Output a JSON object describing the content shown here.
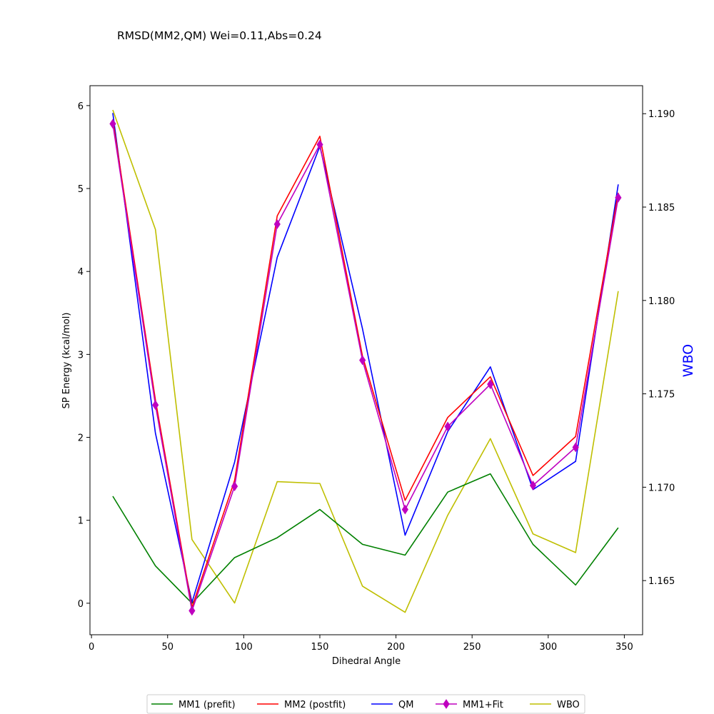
{
  "chart_data": {
    "type": "line",
    "title": "RMSD(MM2,QM) Wei=0.11,Abs=0.24",
    "xlabel": "Dihedral Angle",
    "ylabel": "SP Energy (kcal/mol)",
    "y2label": "WBO",
    "y2label_color": "#0000ff",
    "xlim": [
      -1,
      362
    ],
    "ylim": [
      -0.38,
      6.24
    ],
    "y2lim": [
      1.1621,
      1.1915
    ],
    "xticks": [
      0,
      50,
      100,
      150,
      200,
      250,
      300,
      350
    ],
    "yticks": [
      0,
      1,
      2,
      3,
      4,
      5,
      6
    ],
    "y2ticks": [
      1.165,
      1.17,
      1.175,
      1.18,
      1.185,
      1.19
    ],
    "y2tick_labels": [
      "1.165",
      "1.170",
      "1.175",
      "1.180",
      "1.185",
      "1.190"
    ],
    "x": [
      14,
      42,
      66,
      94,
      122,
      150,
      178,
      206,
      234,
      262,
      290,
      318,
      346
    ],
    "series": [
      {
        "name": "MM1 (prefit)",
        "color": "#008000",
        "axis": "left",
        "marker": "none",
        "values": [
          1.29,
          0.45,
          0.0,
          0.55,
          0.79,
          1.13,
          0.71,
          0.58,
          1.34,
          1.56,
          0.71,
          0.22,
          0.91
        ]
      },
      {
        "name": "MM2 (postfit)",
        "color": "#ff0000",
        "axis": "left",
        "marker": "none",
        "values": [
          5.83,
          2.45,
          -0.05,
          1.48,
          4.67,
          5.63,
          2.98,
          1.24,
          2.24,
          2.73,
          1.54,
          2.01,
          4.95
        ]
      },
      {
        "name": "QM",
        "color": "#0000ff",
        "axis": "left",
        "marker": "none",
        "values": [
          5.91,
          2.05,
          0.01,
          1.7,
          4.17,
          5.51,
          3.31,
          0.82,
          2.07,
          2.85,
          1.37,
          1.71,
          5.05
        ]
      },
      {
        "name": "MM1+Fit",
        "color": "#bf00bf",
        "axis": "left",
        "marker": "diamond",
        "values": [
          5.78,
          2.39,
          -0.09,
          1.41,
          4.57,
          5.53,
          2.93,
          1.13,
          2.13,
          2.64,
          1.42,
          1.88,
          4.89
        ]
      },
      {
        "name": "WBO",
        "color": "#bfbf00",
        "axis": "right",
        "marker": "none",
        "values": [
          1.1902,
          1.1838,
          1.1672,
          1.1638,
          1.1703,
          1.1702,
          1.1647,
          1.1633,
          1.1685,
          1.1726,
          1.1675,
          1.1665,
          1.1805
        ]
      }
    ],
    "legend_position": "bottom-center",
    "grid": false
  }
}
